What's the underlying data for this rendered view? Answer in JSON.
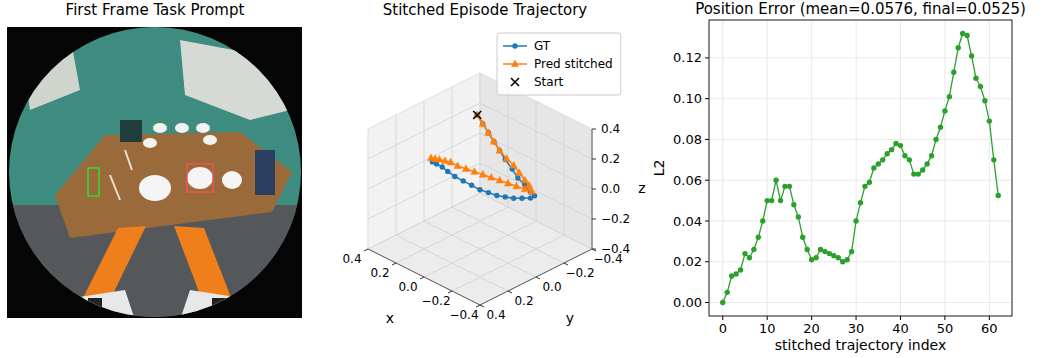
{
  "chart_data": [
    {
      "type": "image",
      "title": "First Frame Task Prompt"
    },
    {
      "type": "line3d",
      "title": "Stitched Episode Trajectory",
      "x_label": "x",
      "y_label": "y",
      "z_label": "z",
      "xlim": [
        -0.4,
        0.4
      ],
      "ylim": [
        -0.4,
        0.4
      ],
      "zlim": [
        -0.4,
        0.4
      ],
      "xticks": [
        {
          "value": 0.4,
          "label": "0.4"
        },
        {
          "value": 0.2,
          "label": "0.2"
        },
        {
          "value": 0,
          "label": "0.0"
        },
        {
          "value": -0.2,
          "label": "−0.2"
        },
        {
          "value": -0.4,
          "label": "−0.4"
        }
      ],
      "yticks": [
        {
          "value": 0.4,
          "label": "0.4"
        },
        {
          "value": 0.2,
          "label": "0.2"
        },
        {
          "value": 0,
          "label": "0.0"
        },
        {
          "value": -0.2,
          "label": "−0.2"
        },
        {
          "value": -0.4,
          "label": "−0.4"
        }
      ],
      "zticks": [
        {
          "value": 0.4,
          "label": "0.4"
        },
        {
          "value": 0.2,
          "label": "0.2"
        },
        {
          "value": 0,
          "label": "0.0"
        },
        {
          "value": -0.2,
          "label": "−0.2"
        },
        {
          "value": -0.4,
          "label": "−0.4"
        }
      ],
      "grid": true,
      "legend": "upper right",
      "series": [
        {
          "name": "GT",
          "color": "#1f77b4",
          "marker": "circle",
          "x": [
            0.11,
            0.08,
            0.05,
            0.02,
            -0.01,
            -0.04,
            -0.08,
            -0.11,
            -0.14,
            -0.17,
            -0.19,
            -0.17,
            -0.13,
            -0.09,
            -0.05,
            -0.01,
            0.03,
            0.07,
            0.11,
            0.15,
            0.19,
            0.23,
            0.26,
            0.29,
            0.31
          ],
          "y": [
            -0.09,
            -0.1,
            -0.11,
            -0.12,
            -0.13,
            -0.14,
            -0.15,
            -0.16,
            -0.18,
            -0.19,
            -0.2,
            -0.19,
            -0.17,
            -0.15,
            -0.13,
            -0.11,
            -0.09,
            -0.07,
            -0.05,
            -0.03,
            -0.01,
            0,
            0.01,
            0.02,
            0.03
          ],
          "z": [
            0.4,
            0.35,
            0.3,
            0.25,
            0.2,
            0.15,
            0.1,
            0.05,
            0.01,
            -0.03,
            -0.05,
            -0.07,
            -0.08,
            -0.09,
            -0.09,
            -0.09,
            -0.08,
            -0.07,
            -0.05,
            -0.03,
            -0.01,
            0.01,
            0.03,
            0.04,
            0.05
          ]
        },
        {
          "name": "Pred stitched",
          "color": "#ff7f0e",
          "marker": "triangle",
          "x": [
            0.11,
            0.08,
            0.05,
            0.02,
            -0.01,
            -0.05,
            -0.08,
            -0.11,
            -0.14,
            -0.16,
            -0.18,
            -0.15,
            -0.11,
            -0.07,
            -0.03,
            0.01,
            0.05,
            0.09,
            0.13,
            0.17,
            0.21,
            0.24,
            0.27,
            0.29,
            0.31
          ],
          "y": [
            -0.09,
            -0.1,
            -0.11,
            -0.12,
            -0.13,
            -0.14,
            -0.16,
            -0.17,
            -0.18,
            -0.19,
            -0.19,
            -0.17,
            -0.15,
            -0.13,
            -0.11,
            -0.09,
            -0.07,
            -0.05,
            -0.03,
            -0.01,
            0,
            0.01,
            0.02,
            0.03,
            0.04
          ],
          "z": [
            0.4,
            0.35,
            0.3,
            0.25,
            0.2,
            0.16,
            0.12,
            0.08,
            0.04,
            0.01,
            -0.02,
            -0.01,
            0,
            0.01,
            0.02,
            0.03,
            0.04,
            0.05,
            0.06,
            0.07,
            0.08,
            0.08,
            0.08,
            0.08,
            0.08
          ]
        }
      ],
      "start": {
        "name": "Start",
        "marker": "x",
        "color": "#000000",
        "x": 0.11,
        "y": -0.09,
        "z": 0.4
      }
    },
    {
      "type": "line",
      "title": "Position Error (mean=0.0576, final=0.0525)",
      "x_label": "stitched trajectory index",
      "y_label": "L2",
      "x": [
        0,
        1,
        2,
        3,
        4,
        5,
        6,
        7,
        8,
        9,
        10,
        11,
        12,
        13,
        14,
        15,
        16,
        17,
        18,
        19,
        20,
        21,
        22,
        23,
        24,
        25,
        26,
        27,
        28,
        29,
        30,
        31,
        32,
        33,
        34,
        35,
        36,
        37,
        38,
        39,
        40,
        41,
        42,
        43,
        44,
        45,
        46,
        47,
        48,
        49,
        50,
        51,
        52,
        53,
        54,
        55,
        56,
        57,
        58,
        59,
        60,
        61,
        62
      ],
      "series": [
        {
          "color": "#2ca02c",
          "marker": "circle",
          "values": [
            0,
            0.005,
            0.013,
            0.014,
            0.016,
            0.024,
            0.022,
            0.026,
            0.032,
            0.04,
            0.05,
            0.05,
            0.06,
            0.05,
            0.057,
            0.057,
            0.048,
            0.042,
            0.032,
            0.026,
            0.021,
            0.022,
            0.026,
            0.025,
            0.024,
            0.023,
            0.022,
            0.02,
            0.021,
            0.025,
            0.04,
            0.049,
            0.057,
            0.059,
            0.066,
            0.068,
            0.07,
            0.073,
            0.075,
            0.078,
            0.077,
            0.072,
            0.07,
            0.063,
            0.063,
            0.065,
            0.068,
            0.072,
            0.08,
            0.086,
            0.094,
            0.101,
            0.113,
            0.125,
            0.132,
            0.131,
            0.121,
            0.11,
            0.106,
            0.099,
            0.089,
            0.07,
            0.0525
          ]
        }
      ],
      "xlim": [
        -3.1,
        65.1
      ],
      "ylim": [
        -0.0066,
        0.1386
      ],
      "xticks": [
        0,
        10,
        20,
        30,
        40,
        50,
        60
      ],
      "yticks": [
        {
          "value": 0,
          "label": "0.00"
        },
        {
          "value": 0.02,
          "label": "0.02"
        },
        {
          "value": 0.04,
          "label": "0.04"
        },
        {
          "value": 0.06,
          "label": "0.06"
        },
        {
          "value": 0.08,
          "label": "0.08"
        },
        {
          "value": 0.1,
          "label": "0.10"
        },
        {
          "value": 0.12,
          "label": "0.12"
        }
      ],
      "grid": true
    }
  ]
}
